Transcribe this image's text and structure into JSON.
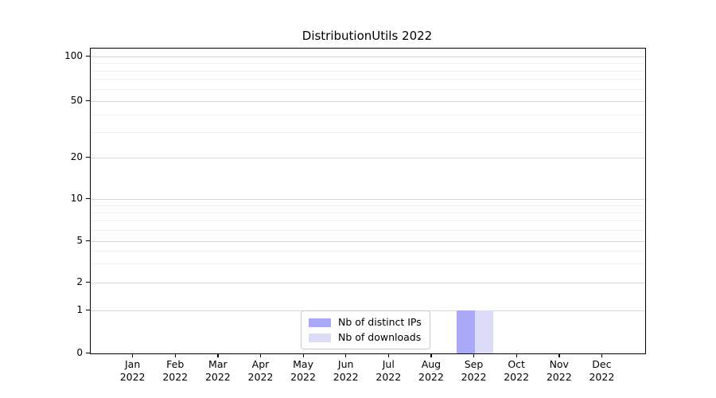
{
  "title": "DistributionUtils 2022",
  "colors": {
    "distinct_ips": "#a9a9f7",
    "downloads": "#dcdcf8",
    "grid_major": "#d9d9d9",
    "grid_minor": "#f0f0f0",
    "spine": "#000000",
    "legend_border": "#cccccc"
  },
  "legend": {
    "items": [
      {
        "label": "Nb of distinct IPs",
        "color": "#a9a9f7"
      },
      {
        "label": "Nb of downloads",
        "color": "#dcdcf8"
      }
    ]
  },
  "y_axis": {
    "tick_labels": [
      "100",
      "50",
      "20",
      "10",
      "5",
      "2",
      "1",
      "0"
    ],
    "major_values": [
      100,
      50,
      20,
      10,
      5,
      2,
      1,
      0
    ],
    "minor_values": [
      3,
      4,
      6,
      7,
      8,
      9,
      30,
      40,
      60,
      70,
      80,
      90
    ]
  },
  "x_axis": {
    "year": "2022",
    "months": [
      "Jan",
      "Feb",
      "Mar",
      "Apr",
      "May",
      "Jun",
      "Jul",
      "Aug",
      "Sep",
      "Oct",
      "Nov",
      "Dec"
    ]
  },
  "chart_data": {
    "type": "bar",
    "title": "DistributionUtils 2022",
    "categories": [
      "Jan 2022",
      "Feb 2022",
      "Mar 2022",
      "Apr 2022",
      "May 2022",
      "Jun 2022",
      "Jul 2022",
      "Aug 2022",
      "Sep 2022",
      "Oct 2022",
      "Nov 2022",
      "Dec 2022"
    ],
    "series": [
      {
        "name": "Nb of distinct IPs",
        "color": "#a9a9f7",
        "values": [
          0,
          0,
          0,
          0,
          0,
          0,
          0,
          0,
          1,
          0,
          0,
          0
        ]
      },
      {
        "name": "Nb of downloads",
        "color": "#dcdcf8",
        "values": [
          0,
          0,
          0,
          0,
          0,
          0,
          0,
          0,
          1,
          0,
          0,
          0
        ]
      }
    ],
    "xlabel": "",
    "ylabel": "",
    "yscale": "symlog",
    "ytick_values": [
      0,
      1,
      2,
      5,
      10,
      20,
      50,
      100
    ],
    "ylim": [
      0,
      115
    ],
    "grid": "horizontal-major-and-minor",
    "legend_position": "inside lower center"
  }
}
